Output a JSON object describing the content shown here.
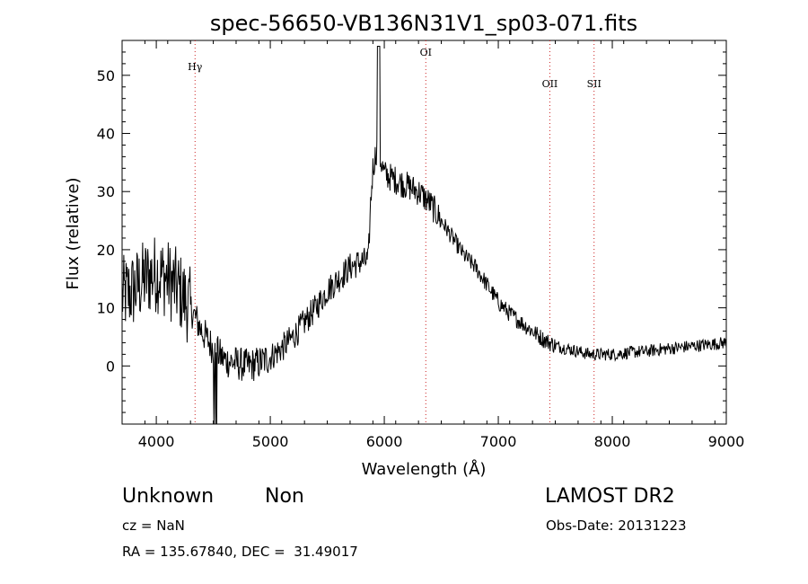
{
  "chart_data": {
    "type": "line",
    "title": "spec-56650-VB136N31V1_sp03-071.fits",
    "xlabel": "Wavelength (Å)",
    "ylabel": "Flux (relative)",
    "xlim": [
      3700,
      9000
    ],
    "ylim": [
      -10,
      56
    ],
    "xticks": [
      4000,
      5000,
      6000,
      7000,
      8000,
      9000
    ],
    "yticks": [
      0,
      10,
      20,
      30,
      40,
      50
    ],
    "grid": false,
    "line_markers": [
      {
        "label": "Hγ",
        "x": 4340
      },
      {
        "label": "OI",
        "x": 6364
      },
      {
        "label": "OII",
        "x": 7452
      },
      {
        "label": "SII",
        "x": 7840
      }
    ],
    "series": [
      {
        "values_description_free": true,
        "x": [
          3700,
          3800,
          3900,
          4000,
          4100,
          4200,
          4300,
          4400,
          4500,
          4600,
          4700,
          4800,
          4900,
          5000,
          5100,
          5200,
          5300,
          5400,
          5500,
          5600,
          5700,
          5800,
          5860,
          5880,
          5900,
          5940,
          5960,
          6000,
          6100,
          6200,
          6300,
          6400,
          6500,
          6600,
          6700,
          6800,
          6900,
          7000,
          7100,
          7200,
          7300,
          7400,
          7500,
          7600,
          7700,
          7800,
          7900,
          8000,
          8100,
          8200,
          8300,
          8400,
          8500,
          8600,
          8700,
          8800,
          8900,
          9000
        ],
        "values": [
          12,
          13,
          15,
          16,
          15,
          13,
          10,
          6,
          3,
          1,
          0.5,
          0,
          0.5,
          1.5,
          3,
          5,
          7.5,
          10,
          13,
          15,
          17,
          18,
          18,
          28,
          34,
          38,
          36,
          33,
          32,
          31,
          30,
          28,
          25,
          22,
          19,
          17,
          14,
          11,
          9,
          7.5,
          6,
          4.5,
          3.5,
          3,
          2.5,
          2,
          2,
          2,
          2.2,
          2.4,
          2.5,
          2.8,
          3,
          3.2,
          3.4,
          3.6,
          3.8,
          4
        ]
      }
    ]
  },
  "info": {
    "class_label": "Unknown",
    "subclass_label": "Non",
    "survey_label": "LAMOST DR2",
    "cz_text": "cz = NaN",
    "obs_date_text": "Obs-Date: 20131223",
    "radec_text": "RA = 135.67840, DEC =  31.49017"
  }
}
